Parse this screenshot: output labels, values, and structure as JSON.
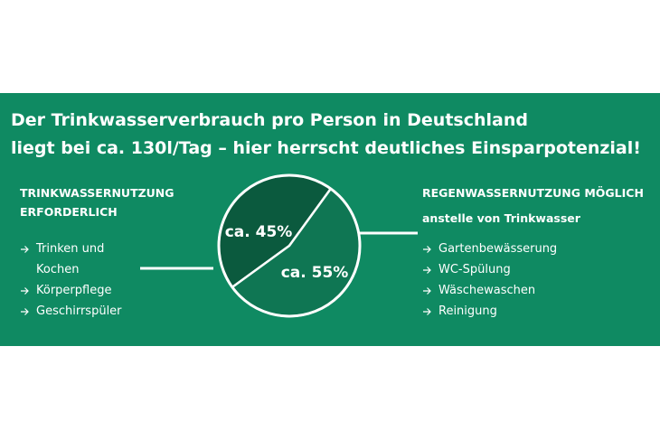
{
  "chart_data": {
    "type": "pie",
    "title": [
      "Der Trinkwasserverbrauch pro Person in Deutschland",
      "liegt bei ca. 130l/Tag – hier herrscht deutliches Einsparpotenzial!"
    ],
    "categories": [
      "TRINKWASSERNUTZUNG ERFORDERLICH",
      "REGENWASSERNUTZUNG MÖGLICH"
    ],
    "values": [
      45,
      55
    ],
    "value_labels": [
      "ca. 45%",
      "ca. 55%"
    ],
    "colors": [
      "#0b5a3e",
      "#0f7653"
    ],
    "subtitles": [
      null,
      "anstelle von Trinkwasser"
    ],
    "items": [
      [
        "Trinken und Kochen",
        "Körperpflege",
        "Geschirrspüler"
      ],
      [
        "Gartenbewässerung",
        "WC-Spülung",
        "Wäschewaschen",
        "Reinigung"
      ]
    ]
  }
}
